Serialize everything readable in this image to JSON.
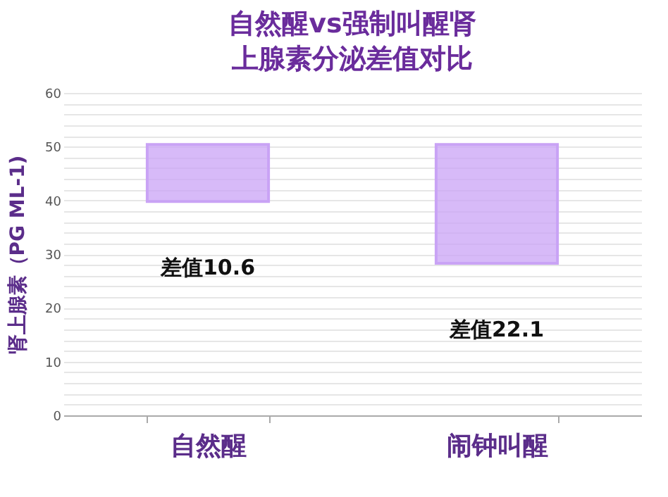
{
  "chart_data": {
    "type": "bar",
    "title": "自然醒vs强制叫醒肾上腺素分泌差值对比",
    "ylabel": "肾上腺素（PG ML-1)",
    "categories": [
      "自然醒",
      "闹钟叫醒"
    ],
    "base": [
      39.8,
      28.3
    ],
    "values": [
      10.6,
      22.1
    ],
    "value_labels": [
      "差值10.6",
      "差值22.1"
    ],
    "color": "#c9a3f5",
    "ylim": [
      0,
      60
    ],
    "yticks": [
      0,
      {
        "value": 2,
        "label": null
      },
      {
        "value": 4,
        "label": null
      },
      {
        "value": 6,
        "label": null
      },
      {
        "value": 8,
        "label": null
      },
      10,
      {
        "value": 12,
        "label": null
      },
      {
        "value": 14,
        "label": null
      },
      {
        "value": 16,
        "label": null
      },
      {
        "value": 18,
        "label": null
      },
      20,
      {
        "value": 22,
        "label": null
      },
      {
        "value": 24,
        "label": null
      },
      {
        "value": 26,
        "label": null
      },
      {
        "value": 28,
        "label": null
      },
      30,
      {
        "value": 32,
        "label": null
      },
      {
        "value": 34,
        "label": null
      },
      {
        "value": 36,
        "label": null
      },
      {
        "value": 38,
        "label": null
      },
      40,
      {
        "value": 42,
        "label": null
      },
      {
        "value": 44,
        "label": null
      },
      {
        "value": 46,
        "label": null
      },
      {
        "value": 48,
        "label": null
      },
      50,
      {
        "value": 52,
        "label": null
      },
      {
        "value": 54,
        "label": null
      },
      {
        "value": 56,
        "label": null
      },
      {
        "value": 58,
        "label": null
      },
      60
    ],
    "grid": true
  }
}
